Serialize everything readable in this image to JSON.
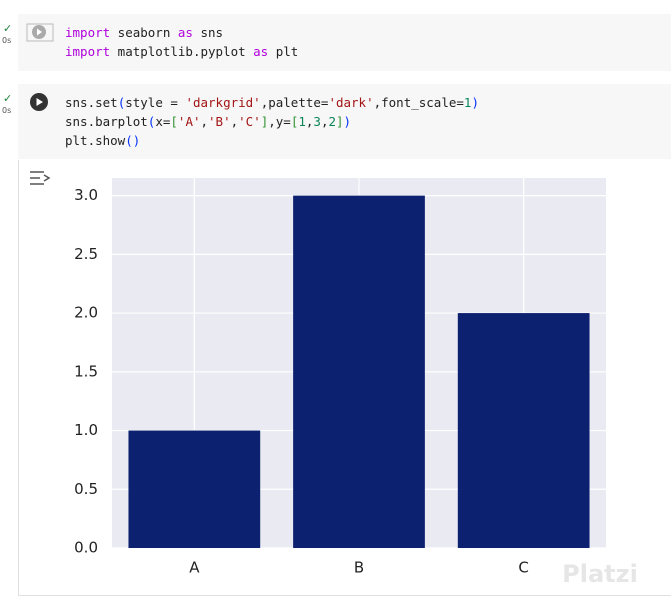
{
  "cells": [
    {
      "status": "0s",
      "lines": [
        [
          {
            "text": "import",
            "color": "#af00db"
          },
          {
            "text": " seaborn ",
            "color": "#222222"
          },
          {
            "text": "as",
            "color": "#af00db"
          },
          {
            "text": " sns",
            "color": "#222222"
          }
        ],
        [
          {
            "text": "import",
            "color": "#af00db"
          },
          {
            "text": " matplotlib.pyplot ",
            "color": "#222222"
          },
          {
            "text": "as",
            "color": "#af00db"
          },
          {
            "text": " plt",
            "color": "#222222"
          }
        ]
      ]
    },
    {
      "status": "0s",
      "lines": [
        [
          {
            "text": "sns.set",
            "color": "#222222"
          },
          {
            "text": "(",
            "color": "#0431fa"
          },
          {
            "text": "style = ",
            "color": "#222222"
          },
          {
            "text": "'darkgrid'",
            "color": "#a31515"
          },
          {
            "text": ",palette=",
            "color": "#222222"
          },
          {
            "text": "'dark'",
            "color": "#a31515"
          },
          {
            "text": ",font_scale=",
            "color": "#222222"
          },
          {
            "text": "1",
            "color": "#098658"
          },
          {
            "text": ")",
            "color": "#0431fa"
          }
        ],
        [
          {
            "text": "sns.barplot",
            "color": "#222222"
          },
          {
            "text": "(",
            "color": "#0431fa"
          },
          {
            "text": "x=",
            "color": "#222222"
          },
          {
            "text": "[",
            "color": "#319331"
          },
          {
            "text": "'A'",
            "color": "#a31515"
          },
          {
            "text": ",",
            "color": "#222222"
          },
          {
            "text": "'B'",
            "color": "#a31515"
          },
          {
            "text": ",",
            "color": "#222222"
          },
          {
            "text": "'C'",
            "color": "#a31515"
          },
          {
            "text": "]",
            "color": "#319331"
          },
          {
            "text": ",y=",
            "color": "#222222"
          },
          {
            "text": "[",
            "color": "#319331"
          },
          {
            "text": "1",
            "color": "#098658"
          },
          {
            "text": ",",
            "color": "#222222"
          },
          {
            "text": "3",
            "color": "#098658"
          },
          {
            "text": ",",
            "color": "#222222"
          },
          {
            "text": "2",
            "color": "#098658"
          },
          {
            "text": "]",
            "color": "#319331"
          },
          {
            "text": ")",
            "color": "#0431fa"
          }
        ],
        [
          {
            "text": "plt.show",
            "color": "#222222"
          },
          {
            "text": "()",
            "color": "#0431fa"
          }
        ]
      ]
    }
  ],
  "watermark": "Platzi",
  "chart_data": {
    "type": "bar",
    "categories": [
      "A",
      "B",
      "C"
    ],
    "values": [
      1,
      3,
      2
    ],
    "color": "#0c2170",
    "ylim": [
      0,
      3.15
    ],
    "yticks": [
      {
        "value": 0,
        "label": "0.0"
      },
      {
        "value": 0.5,
        "label": "0.5"
      },
      {
        "value": 1,
        "label": "1.0"
      },
      {
        "value": 1.5,
        "label": "1.5"
      },
      {
        "value": 2,
        "label": "2.0"
      },
      {
        "value": 2.5,
        "label": "2.5"
      },
      {
        "value": 3,
        "label": "3.0"
      }
    ],
    "grid": true
  }
}
